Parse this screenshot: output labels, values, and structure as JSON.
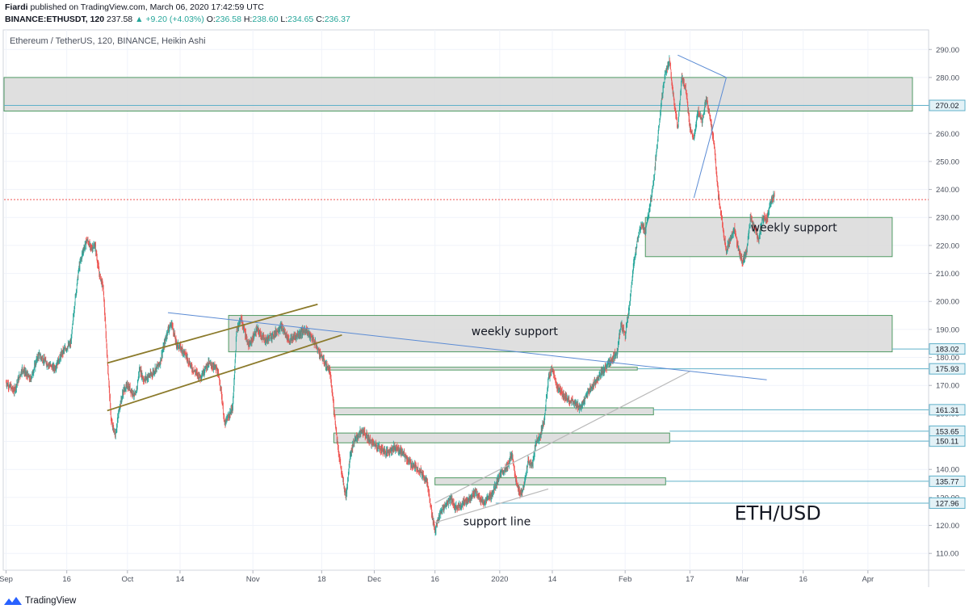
{
  "header": {
    "author": "Fiardi",
    "published": "published on TradingView.com, March 06, 2020 17:42:59 UTC",
    "symbol": "BINANCE:ETHUSDT, 120",
    "last": "237.58",
    "change": "▲ +9.20 (+4.03%)",
    "o_label": "O:",
    "o": "236.58",
    "h_label": "H:",
    "h": "238.60",
    "l_label": "L:",
    "l": "234.65",
    "c_label": "C:",
    "c": "236.37"
  },
  "footer": {
    "brand": "TradingView"
  },
  "colors": {
    "up": "#26a69a",
    "down": "#ef5350",
    "zone_fill": "#d9d9d9",
    "zone_stroke": "#4f9a63",
    "trend_blue": "#5b8bd4",
    "channel": "#8b7a2b"
  },
  "chart_data": {
    "type": "line",
    "title": "Ethereum / TetherUS, 120, BINANCE, Heikin Ashi",
    "ylim": [
      104,
      297
    ],
    "y_ticks": [
      "110.00",
      "120.00",
      "130.00",
      "140.00",
      "150.00",
      "160.00",
      "170.00",
      "180.00",
      "190.00",
      "200.00",
      "210.00",
      "220.00",
      "230.00",
      "240.00",
      "250.00",
      "260.00",
      "270.00",
      "280.00",
      "290.00"
    ],
    "x_ticks": [
      {
        "label": "Sep",
        "day": 0
      },
      {
        "label": "16",
        "day": 15
      },
      {
        "label": "Oct",
        "day": 30
      },
      {
        "label": "14",
        "day": 43
      },
      {
        "label": "Nov",
        "day": 61
      },
      {
        "label": "18",
        "day": 78
      },
      {
        "label": "Dec",
        "day": 91
      },
      {
        "label": "16",
        "day": 106
      },
      {
        "label": "2020",
        "day": 122
      },
      {
        "label": "14",
        "day": 135
      },
      {
        "label": "Feb",
        "day": 153
      },
      {
        "label": "17",
        "day": 169
      },
      {
        "label": "Mar",
        "day": 182
      },
      {
        "label": "16",
        "day": 197
      },
      {
        "label": "Apr",
        "day": 213
      }
    ],
    "price_path": [
      [
        0,
        171
      ],
      [
        2,
        168
      ],
      [
        4,
        176
      ],
      [
        6,
        172
      ],
      [
        8,
        181
      ],
      [
        10,
        178
      ],
      [
        12,
        176
      ],
      [
        14,
        182
      ],
      [
        16,
        185
      ],
      [
        17,
        200
      ],
      [
        18,
        212
      ],
      [
        19,
        218
      ],
      [
        20,
        222
      ],
      [
        21,
        219
      ],
      [
        22,
        220
      ],
      [
        23,
        210
      ],
      [
        24,
        205
      ],
      [
        25,
        180
      ],
      [
        26,
        157
      ],
      [
        27,
        152
      ],
      [
        28,
        162
      ],
      [
        29,
        168
      ],
      [
        30,
        170
      ],
      [
        32,
        166
      ],
      [
        33,
        176
      ],
      [
        34,
        172
      ],
      [
        36,
        174
      ],
      [
        38,
        178
      ],
      [
        40,
        190
      ],
      [
        41,
        192
      ],
      [
        42,
        185
      ],
      [
        44,
        182
      ],
      [
        46,
        176
      ],
      [
        48,
        173
      ],
      [
        50,
        178
      ],
      [
        52,
        176
      ],
      [
        53,
        170
      ],
      [
        54,
        156
      ],
      [
        56,
        162
      ],
      [
        57,
        190
      ],
      [
        58,
        194
      ],
      [
        60,
        184
      ],
      [
        62,
        190
      ],
      [
        64,
        186
      ],
      [
        66,
        188
      ],
      [
        68,
        191
      ],
      [
        70,
        186
      ],
      [
        72,
        188
      ],
      [
        74,
        190
      ],
      [
        76,
        186
      ],
      [
        78,
        180
      ],
      [
        80,
        175
      ],
      [
        81,
        162
      ],
      [
        82,
        148
      ],
      [
        83,
        138
      ],
      [
        84,
        130
      ],
      [
        85,
        145
      ],
      [
        86,
        150
      ],
      [
        88,
        154
      ],
      [
        90,
        150
      ],
      [
        92,
        148
      ],
      [
        94,
        146
      ],
      [
        96,
        148
      ],
      [
        98,
        146
      ],
      [
        100,
        142
      ],
      [
        102,
        140
      ],
      [
        104,
        136
      ],
      [
        105,
        126
      ],
      [
        106,
        118
      ],
      [
        107,
        123
      ],
      [
        108,
        126
      ],
      [
        110,
        130
      ],
      [
        111,
        126
      ],
      [
        112,
        127
      ],
      [
        114,
        129
      ],
      [
        116,
        132
      ],
      [
        118,
        128
      ],
      [
        120,
        131
      ],
      [
        122,
        138
      ],
      [
        124,
        141
      ],
      [
        125,
        146
      ],
      [
        126,
        136
      ],
      [
        127,
        131
      ],
      [
        128,
        134
      ],
      [
        129,
        143
      ],
      [
        130,
        141
      ],
      [
        131,
        150
      ],
      [
        132,
        152
      ],
      [
        133,
        158
      ],
      [
        134,
        172
      ],
      [
        135,
        176
      ],
      [
        136,
        170
      ],
      [
        138,
        166
      ],
      [
        140,
        164
      ],
      [
        142,
        162
      ],
      [
        144,
        168
      ],
      [
        146,
        172
      ],
      [
        148,
        176
      ],
      [
        150,
        180
      ],
      [
        151,
        182
      ],
      [
        152,
        192
      ],
      [
        153,
        188
      ],
      [
        154,
        198
      ],
      [
        155,
        212
      ],
      [
        156,
        222
      ],
      [
        157,
        228
      ],
      [
        158,
        225
      ],
      [
        159,
        233
      ],
      [
        160,
        242
      ],
      [
        161,
        258
      ],
      [
        162,
        272
      ],
      [
        163,
        282
      ],
      [
        164,
        286
      ],
      [
        165,
        272
      ],
      [
        166,
        262
      ],
      [
        167,
        280
      ],
      [
        168,
        276
      ],
      [
        169,
        262
      ],
      [
        170,
        258
      ],
      [
        171,
        268
      ],
      [
        172,
        264
      ],
      [
        173,
        272
      ],
      [
        174,
        266
      ],
      [
        175,
        256
      ],
      [
        176,
        238
      ],
      [
        177,
        228
      ],
      [
        178,
        218
      ],
      [
        179,
        222
      ],
      [
        180,
        226
      ],
      [
        181,
        218
      ],
      [
        182,
        214
      ],
      [
        183,
        218
      ],
      [
        184,
        230
      ],
      [
        185,
        226
      ],
      [
        186,
        222
      ],
      [
        187,
        230
      ],
      [
        188,
        229
      ],
      [
        189,
        236
      ],
      [
        190,
        238
      ]
    ],
    "last_price": 236.37,
    "zones": [
      {
        "d0": -0.5,
        "d1": 224,
        "y0": 268,
        "y1": 280
      },
      {
        "d0": 158,
        "d1": 219,
        "y0": 216,
        "y1": 230
      },
      {
        "d0": 55,
        "d1": 219,
        "y0": 182,
        "y1": 195
      },
      {
        "d0": 79,
        "d1": 156,
        "y0": 175.5,
        "y1": 176.5
      },
      {
        "d0": 81,
        "d1": 160,
        "y0": 159.5,
        "y1": 162
      },
      {
        "d0": 81,
        "d1": 164,
        "y0": 149.5,
        "y1": 153
      },
      {
        "d0": 106,
        "d1": 163,
        "y0": 134.5,
        "y1": 137
      }
    ],
    "trend_lines": [
      {
        "kind": "blue",
        "p": [
          [
            40,
            196
          ],
          [
            188,
            172
          ]
        ]
      },
      {
        "kind": "blue",
        "p": [
          [
            166,
            288
          ],
          [
            178,
            280
          ],
          [
            170,
            237
          ]
        ]
      },
      {
        "kind": "channel",
        "p": [
          [
            25,
            178
          ],
          [
            77,
            199
          ]
        ]
      },
      {
        "kind": "channel",
        "p": [
          [
            25,
            161
          ],
          [
            83,
            188
          ]
        ]
      },
      {
        "kind": "gray",
        "p": [
          [
            106,
            128
          ],
          [
            169,
            175
          ]
        ]
      },
      {
        "kind": "gray",
        "p": [
          [
            106,
            121
          ],
          [
            134,
            133
          ]
        ]
      }
    ],
    "horizontal_levels": [
      {
        "value": 270.02,
        "label": "270.02",
        "d0": -0.5
      },
      {
        "value": 183.02,
        "label": "183.02",
        "d0": 219
      },
      {
        "value": 175.93,
        "label": "175.93",
        "d0": 156
      },
      {
        "value": 161.31,
        "label": "161.31",
        "d0": 160
      },
      {
        "value": 153.65,
        "label": "153.65",
        "d0": 164
      },
      {
        "value": 150.11,
        "label": "150.11",
        "d0": 164
      },
      {
        "value": 135.77,
        "label": "135.77",
        "d0": 163
      },
      {
        "value": 127.96,
        "label": "127.96",
        "d0": 121
      }
    ],
    "annotations": [
      {
        "text": "weekly support",
        "d": 184,
        "y": 225,
        "cls": "ann-text"
      },
      {
        "text": "weekly support",
        "d": 115,
        "y": 188,
        "cls": "ann-text"
      },
      {
        "text": "support line",
        "d": 113,
        "y": 120,
        "cls": "ann-text"
      },
      {
        "text": "ETH/USD",
        "d": 180,
        "y": 122,
        "cls": "big-text"
      }
    ]
  }
}
